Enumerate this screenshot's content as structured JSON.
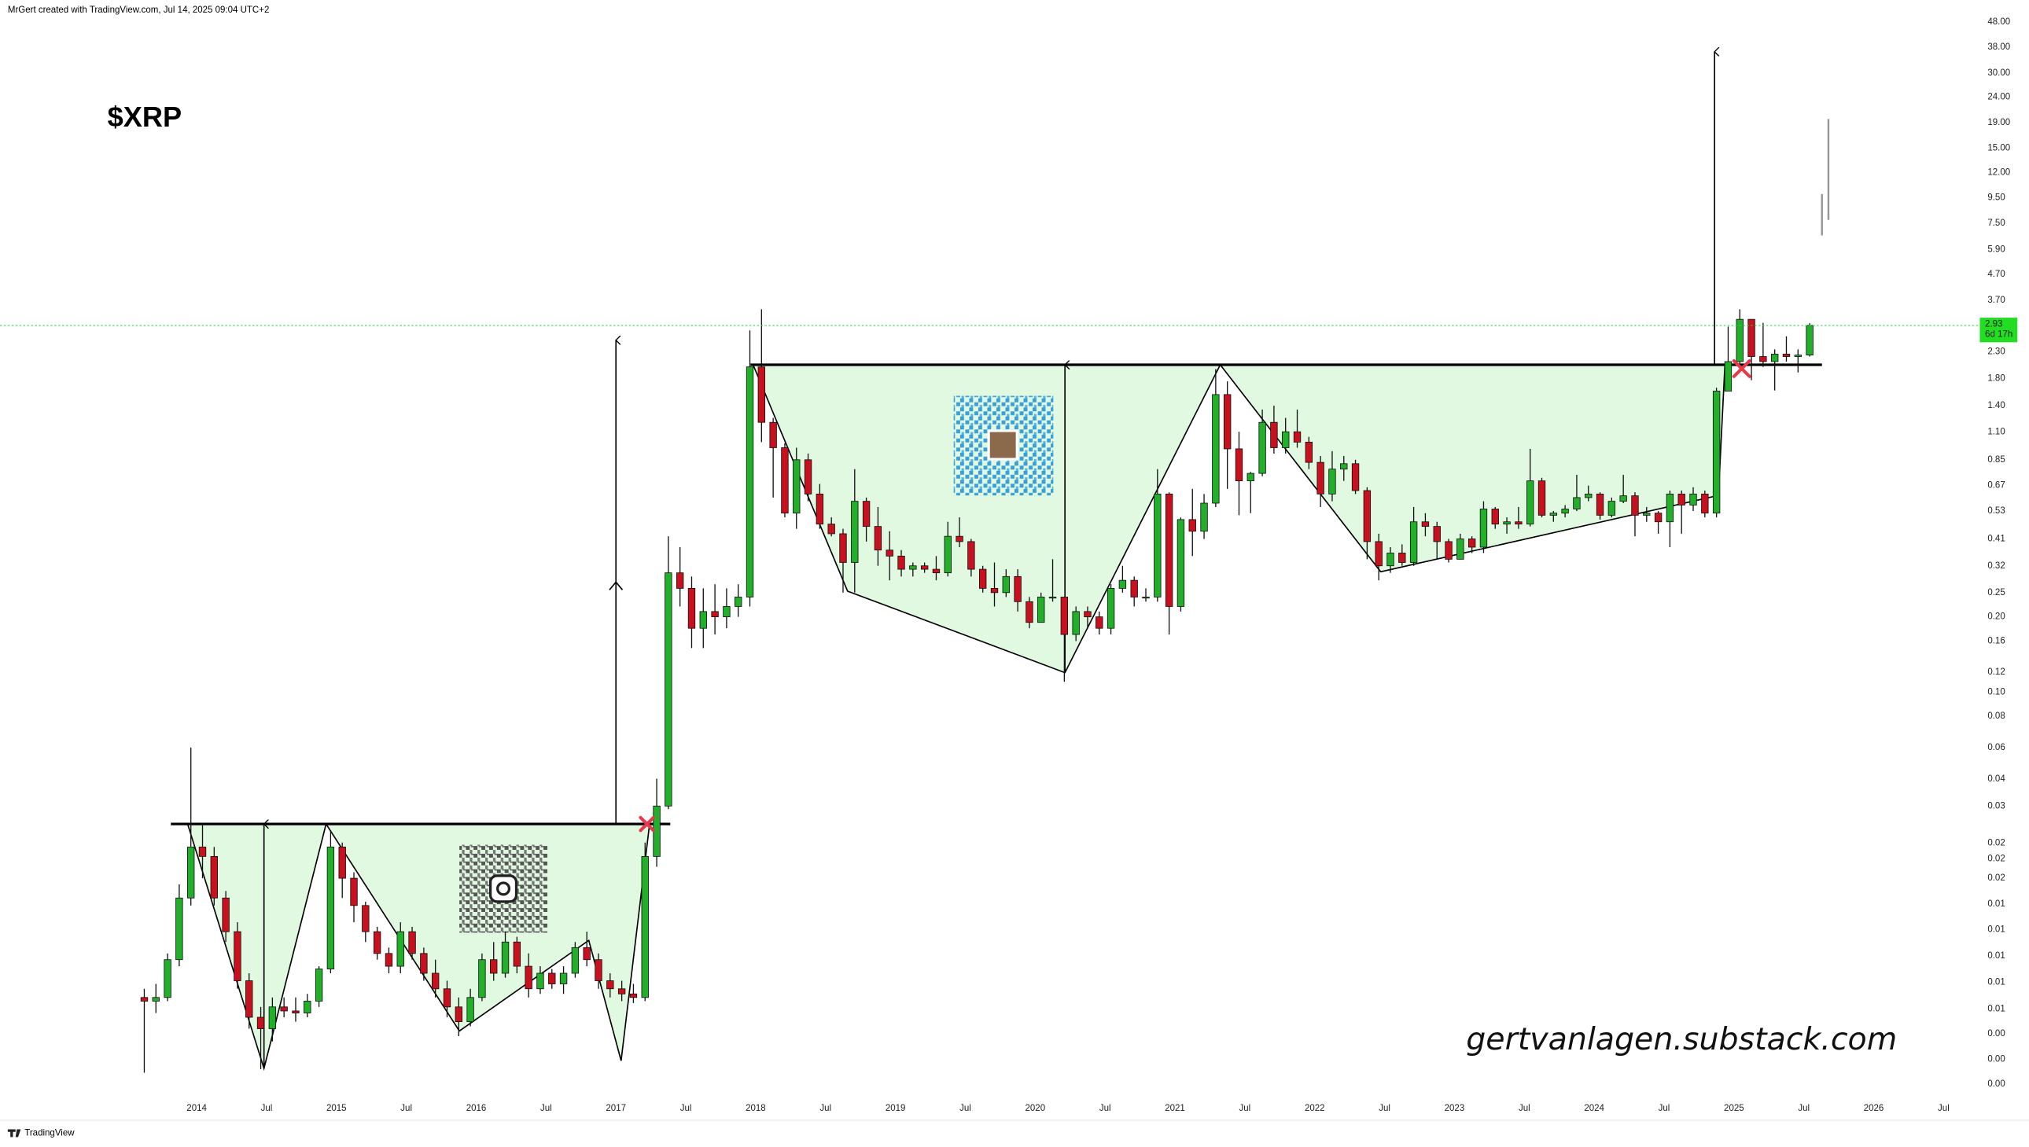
{
  "chart_data": {
    "type": "candlestick",
    "header": "MrGert created with TradingView.com, Jul 14, 2025 09:04 UTC+2",
    "title": "$XRP",
    "watermark": "gertvanlagen.substack.com",
    "footer": "TradingView",
    "log_scale": true,
    "grid": false,
    "up_color": "#22b02a",
    "down_color": "#c8101e",
    "last_price": 2.93,
    "last_price_color": "#22dd22",
    "countdown": "6d 17h",
    "xlim": [
      "2012-08",
      "2026-10"
    ],
    "xticks": [
      {
        "value": "2014-01",
        "label": "2014"
      },
      {
        "value": "2014-07",
        "label": "Jul"
      },
      {
        "value": "2015-01",
        "label": "2015"
      },
      {
        "value": "2015-07",
        "label": "Jul"
      },
      {
        "value": "2016-01",
        "label": "2016"
      },
      {
        "value": "2016-07",
        "label": "Jul"
      },
      {
        "value": "2017-01",
        "label": "2017"
      },
      {
        "value": "2017-07",
        "label": "Jul"
      },
      {
        "value": "2018-01",
        "label": "2018"
      },
      {
        "value": "2018-07",
        "label": "Jul"
      },
      {
        "value": "2019-01",
        "label": "2019"
      },
      {
        "value": "2019-07",
        "label": "Jul"
      },
      {
        "value": "2020-01",
        "label": "2020"
      },
      {
        "value": "2020-07",
        "label": "Jul"
      },
      {
        "value": "2021-01",
        "label": "2021"
      },
      {
        "value": "2021-07",
        "label": "Jul"
      },
      {
        "value": "2022-01",
        "label": "2022"
      },
      {
        "value": "2022-07",
        "label": "Jul"
      },
      {
        "value": "2023-01",
        "label": "2023"
      },
      {
        "value": "2023-07",
        "label": "Jul"
      },
      {
        "value": "2024-01",
        "label": "2024"
      },
      {
        "value": "2024-07",
        "label": "Jul"
      },
      {
        "value": "2025-01",
        "label": "2025"
      },
      {
        "value": "2025-07",
        "label": "Jul"
      },
      {
        "value": "2026-01",
        "label": "2026"
      },
      {
        "value": "2026-07",
        "label": "Jul"
      }
    ],
    "ylim": [
      0.0024,
      56
    ],
    "yticks": [
      {
        "value": 48,
        "label": "48.00"
      },
      {
        "value": 38,
        "label": "38.00"
      },
      {
        "value": 30,
        "label": "30.00"
      },
      {
        "value": 24,
        "label": "24.00"
      },
      {
        "value": 19,
        "label": "19.00"
      },
      {
        "value": 15,
        "label": "15.00"
      },
      {
        "value": 12,
        "label": "12.00"
      },
      {
        "value": 9.5,
        "label": "9.50"
      },
      {
        "value": 7.5,
        "label": "7.50"
      },
      {
        "value": 5.9,
        "label": "5.90"
      },
      {
        "value": 4.7,
        "label": "4.70"
      },
      {
        "value": 3.7,
        "label": "3.70"
      },
      {
        "value": 2.3,
        "label": "2.30"
      },
      {
        "value": 1.8,
        "label": "1.80"
      },
      {
        "value": 1.4,
        "label": "1.40"
      },
      {
        "value": 1.1,
        "label": "1.10"
      },
      {
        "value": 0.85,
        "label": "0.85"
      },
      {
        "value": 0.67,
        "label": "0.67"
      },
      {
        "value": 0.53,
        "label": "0.53"
      },
      {
        "value": 0.41,
        "label": "0.41"
      },
      {
        "value": 0.32,
        "label": "0.32"
      },
      {
        "value": 0.25,
        "label": "0.25"
      },
      {
        "value": 0.2,
        "label": "0.20"
      },
      {
        "value": 0.16,
        "label": "0.16"
      },
      {
        "value": 0.12,
        "label": "0.12"
      },
      {
        "value": 0.1,
        "label": "0.10"
      },
      {
        "value": 0.08,
        "label": "0.08"
      },
      {
        "value": 0.06,
        "label": "0.06"
      },
      {
        "value": 0.0449,
        "label": "0.04"
      },
      {
        "value": 0.0349,
        "label": "0.03"
      },
      {
        "value": 0.0249,
        "label": "0.02"
      },
      {
        "value": 0.0215,
        "label": "0.02"
      },
      {
        "value": 0.018,
        "label": "0.02"
      },
      {
        "value": 0.0142,
        "label": "0.01"
      },
      {
        "value": 0.0112,
        "label": "0.01"
      },
      {
        "value": 0.0088,
        "label": "0.01"
      },
      {
        "value": 0.0069,
        "label": "0.01"
      },
      {
        "value": 0.0054,
        "label": "0.01"
      },
      {
        "value": 0.0043,
        "label": "0.00"
      },
      {
        "value": 0.0034,
        "label": "0.00"
      },
      {
        "value": 0.0027,
        "label": "0.00"
      }
    ],
    "x": [
      "2013-08",
      "2013-09",
      "2013-10",
      "2013-11",
      "2013-12",
      "2014-01",
      "2014-02",
      "2014-03",
      "2014-04",
      "2014-05",
      "2014-06",
      "2014-07",
      "2014-08",
      "2014-09",
      "2014-10",
      "2014-11",
      "2014-12",
      "2015-01",
      "2015-02",
      "2015-03",
      "2015-04",
      "2015-05",
      "2015-06",
      "2015-07",
      "2015-08",
      "2015-09",
      "2015-10",
      "2015-11",
      "2015-12",
      "2016-01",
      "2016-02",
      "2016-03",
      "2016-04",
      "2016-05",
      "2016-06",
      "2016-07",
      "2016-08",
      "2016-09",
      "2016-10",
      "2016-11",
      "2016-12",
      "2017-01",
      "2017-02",
      "2017-03",
      "2017-04",
      "2017-05",
      "2017-06",
      "2017-07",
      "2017-08",
      "2017-09",
      "2017-10",
      "2017-11",
      "2017-12",
      "2018-01",
      "2018-02",
      "2018-03",
      "2018-04",
      "2018-05",
      "2018-06",
      "2018-07",
      "2018-08",
      "2018-09",
      "2018-10",
      "2018-11",
      "2018-12",
      "2019-01",
      "2019-02",
      "2019-03",
      "2019-04",
      "2019-05",
      "2019-06",
      "2019-07",
      "2019-08",
      "2019-09",
      "2019-10",
      "2019-11",
      "2019-12",
      "2020-01",
      "2020-02",
      "2020-03",
      "2020-04",
      "2020-05",
      "2020-06",
      "2020-07",
      "2020-08",
      "2020-09",
      "2020-10",
      "2020-11",
      "2020-12",
      "2021-01",
      "2021-02",
      "2021-03",
      "2021-04",
      "2021-05",
      "2021-06",
      "2021-07",
      "2021-08",
      "2021-09",
      "2021-10",
      "2021-11",
      "2021-12",
      "2022-01",
      "2022-02",
      "2022-03",
      "2022-04",
      "2022-05",
      "2022-06",
      "2022-07",
      "2022-08",
      "2022-09",
      "2022-10",
      "2022-11",
      "2022-12",
      "2023-01",
      "2023-02",
      "2023-03",
      "2023-04",
      "2023-05",
      "2023-06",
      "2023-07",
      "2023-08",
      "2023-09",
      "2023-10",
      "2023-11",
      "2023-12",
      "2024-01",
      "2024-02",
      "2024-03",
      "2024-04",
      "2024-05",
      "2024-06",
      "2024-07",
      "2024-08",
      "2024-09",
      "2024-10",
      "2024-11",
      "2024-12",
      "2025-01",
      "2025-02",
      "2025-03",
      "2025-04",
      "2025-05",
      "2025-06",
      "2025-07"
    ],
    "open": [
      0.006,
      0.0058,
      0.006,
      0.0085,
      0.015,
      0.024,
      0.022,
      0.015,
      0.011,
      0.007,
      0.005,
      0.0045,
      0.0055,
      0.0053,
      0.0052,
      0.0058,
      0.0078,
      0.024,
      0.018,
      0.014,
      0.011,
      0.009,
      0.008,
      0.011,
      0.009,
      0.0075,
      0.0065,
      0.0055,
      0.0048,
      0.006,
      0.0085,
      0.0075,
      0.01,
      0.008,
      0.0065,
      0.0075,
      0.0068,
      0.0075,
      0.0095,
      0.0085,
      0.007,
      0.0065,
      0.0062,
      0.006,
      0.022,
      0.035,
      0.3,
      0.26,
      0.18,
      0.21,
      0.2,
      0.22,
      0.24,
      2,
      1.2,
      0.95,
      0.52,
      0.85,
      0.62,
      0.47,
      0.43,
      0.33,
      0.58,
      0.46,
      0.37,
      0.35,
      0.31,
      0.32,
      0.31,
      0.3,
      0.42,
      0.4,
      0.31,
      0.26,
      0.25,
      0.29,
      0.23,
      0.19,
      0.24,
      0.24,
      0.17,
      0.21,
      0.2,
      0.18,
      0.26,
      0.28,
      0.24,
      0.24,
      0.62,
      0.22,
      0.49,
      0.44,
      0.57,
      1.55,
      0.94,
      0.7,
      0.75,
      1.2,
      0.95,
      1.1,
      1,
      0.83,
      0.62,
      0.78,
      0.82,
      0.64,
      0.4,
      0.32,
      0.36,
      0.33,
      0.48,
      0.46,
      0.4,
      0.34,
      0.41,
      0.38,
      0.54,
      0.47,
      0.48,
      0.47,
      0.7,
      0.51,
      0.52,
      0.54,
      0.6,
      0.62,
      0.51,
      0.58,
      0.61,
      0.51,
      0.52,
      0.48,
      0.62,
      0.56,
      0.62,
      0.52,
      1.6,
      2.1,
      3.1,
      2.2,
      2.1,
      2.25,
      2.2,
      2.23
    ],
    "high": [
      0.0065,
      0.0068,
      0.009,
      0.017,
      0.06,
      0.03,
      0.024,
      0.016,
      0.012,
      0.0075,
      0.0055,
      0.006,
      0.006,
      0.006,
      0.0062,
      0.008,
      0.028,
      0.025,
      0.019,
      0.0145,
      0.0115,
      0.0095,
      0.012,
      0.0115,
      0.0095,
      0.0085,
      0.007,
      0.006,
      0.0065,
      0.009,
      0.01,
      0.011,
      0.0105,
      0.009,
      0.008,
      0.0078,
      0.008,
      0.01,
      0.011,
      0.009,
      0.0075,
      0.007,
      0.0068,
      0.025,
      0.045,
      0.42,
      0.38,
      0.29,
      0.26,
      0.27,
      0.26,
      0.27,
      2.8,
      3.4,
      1.25,
      0.99,
      0.95,
      0.9,
      0.68,
      0.5,
      0.45,
      0.78,
      0.6,
      0.55,
      0.44,
      0.37,
      0.33,
      0.33,
      0.35,
      0.48,
      0.5,
      0.41,
      0.32,
      0.33,
      0.31,
      0.31,
      0.24,
      0.25,
      0.34,
      0.24,
      0.22,
      0.22,
      0.21,
      0.27,
      0.32,
      0.29,
      0.26,
      0.78,
      0.63,
      0.5,
      0.65,
      0.62,
      1.96,
      1.75,
      1.1,
      0.76,
      1.35,
      1.4,
      1.25,
      1.35,
      1.05,
      0.88,
      0.92,
      0.88,
      0.85,
      0.66,
      0.43,
      0.38,
      0.39,
      0.55,
      0.52,
      0.48,
      0.41,
      0.43,
      0.42,
      0.58,
      0.55,
      0.5,
      0.55,
      0.94,
      0.72,
      0.53,
      0.56,
      0.74,
      0.67,
      0.63,
      0.6,
      0.74,
      0.63,
      0.55,
      0.53,
      0.64,
      0.64,
      0.66,
      0.64,
      1.65,
      2.9,
      3.4,
      3.1,
      3,
      2.35,
      2.65,
      2.35,
      2.99
    ],
    "low": [
      0.003,
      0.0052,
      0.0058,
      0.008,
      0.014,
      0.018,
      0.014,
      0.01,
      0.0065,
      0.0045,
      0.0031,
      0.004,
      0.005,
      0.0048,
      0.005,
      0.0055,
      0.0075,
      0.015,
      0.012,
      0.01,
      0.0085,
      0.0075,
      0.0075,
      0.0085,
      0.007,
      0.006,
      0.005,
      0.0042,
      0.0046,
      0.0058,
      0.007,
      0.0072,
      0.0075,
      0.006,
      0.0062,
      0.0065,
      0.0062,
      0.0072,
      0.008,
      0.0065,
      0.006,
      0.0058,
      0.0057,
      0.0058,
      0.02,
      0.034,
      0.22,
      0.15,
      0.15,
      0.17,
      0.18,
      0.2,
      0.22,
      1,
      0.6,
      0.5,
      0.45,
      0.58,
      0.45,
      0.42,
      0.25,
      0.25,
      0.4,
      0.32,
      0.28,
      0.29,
      0.29,
      0.3,
      0.28,
      0.29,
      0.38,
      0.29,
      0.25,
      0.22,
      0.24,
      0.21,
      0.18,
      0.19,
      0.23,
      0.11,
      0.16,
      0.18,
      0.17,
      0.17,
      0.25,
      0.22,
      0.23,
      0.23,
      0.17,
      0.21,
      0.35,
      0.41,
      0.55,
      0.65,
      0.51,
      0.52,
      0.73,
      0.9,
      0.9,
      0.95,
      0.78,
      0.55,
      0.58,
      0.7,
      0.62,
      0.34,
      0.28,
      0.3,
      0.32,
      0.32,
      0.42,
      0.34,
      0.33,
      0.34,
      0.36,
      0.36,
      0.45,
      0.43,
      0.45,
      0.46,
      0.5,
      0.48,
      0.5,
      0.53,
      0.58,
      0.49,
      0.5,
      0.57,
      0.42,
      0.48,
      0.43,
      0.38,
      0.43,
      0.53,
      0.5,
      0.5,
      1.6,
      2,
      1.77,
      2,
      1.61,
      2.1,
      1.9,
      2.2
    ],
    "close": [
      0.0058,
      0.006,
      0.0085,
      0.015,
      0.024,
      0.022,
      0.015,
      0.011,
      0.007,
      0.005,
      0.0045,
      0.0055,
      0.0053,
      0.0052,
      0.0058,
      0.0078,
      0.024,
      0.018,
      0.014,
      0.011,
      0.009,
      0.008,
      0.011,
      0.009,
      0.0075,
      0.0065,
      0.0055,
      0.0048,
      0.006,
      0.0085,
      0.0075,
      0.01,
      0.008,
      0.0065,
      0.0075,
      0.0068,
      0.0075,
      0.0095,
      0.0085,
      0.007,
      0.0065,
      0.0062,
      0.006,
      0.022,
      0.035,
      0.3,
      0.26,
      0.18,
      0.21,
      0.2,
      0.22,
      0.24,
      2,
      1.2,
      0.95,
      0.52,
      0.85,
      0.62,
      0.47,
      0.43,
      0.33,
      0.58,
      0.46,
      0.37,
      0.35,
      0.31,
      0.32,
      0.31,
      0.3,
      0.42,
      0.4,
      0.31,
      0.26,
      0.25,
      0.29,
      0.23,
      0.19,
      0.24,
      0.24,
      0.17,
      0.21,
      0.2,
      0.18,
      0.26,
      0.28,
      0.24,
      0.24,
      0.62,
      0.22,
      0.49,
      0.44,
      0.57,
      1.55,
      0.94,
      0.7,
      0.75,
      1.2,
      0.95,
      1.1,
      1,
      0.83,
      0.62,
      0.78,
      0.82,
      0.64,
      0.4,
      0.32,
      0.36,
      0.33,
      0.48,
      0.46,
      0.4,
      0.34,
      0.41,
      0.38,
      0.54,
      0.47,
      0.48,
      0.47,
      0.7,
      0.51,
      0.52,
      0.54,
      0.6,
      0.62,
      0.51,
      0.58,
      0.61,
      0.51,
      0.52,
      0.48,
      0.62,
      0.56,
      0.62,
      0.52,
      1.6,
      2.1,
      3.1,
      2.2,
      2.1,
      2.25,
      2.2,
      2.23,
      2.93
    ]
  }
}
